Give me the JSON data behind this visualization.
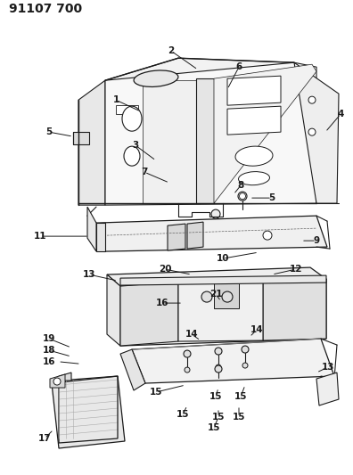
{
  "title": "91107 700",
  "bg_color": "#ffffff",
  "line_color": "#1a1a1a",
  "title_fontsize": 10,
  "label_fontsize": 7.5,
  "fig_w": 3.96,
  "fig_h": 5.33,
  "dpi": 100
}
